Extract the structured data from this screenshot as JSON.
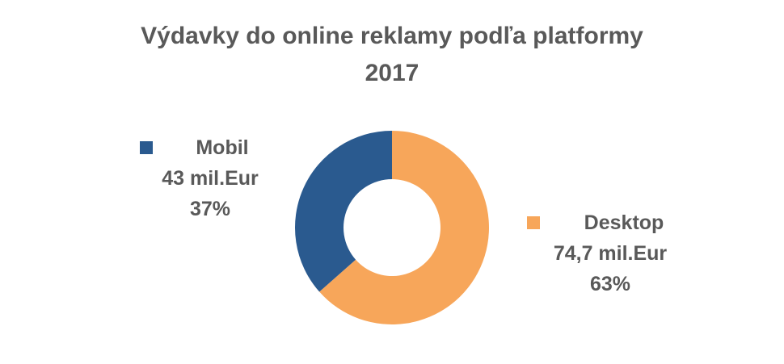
{
  "chart_data": {
    "type": "pie",
    "variant": "donut",
    "title_lines": [
      "Výdavky do online reklamy podľa platformy",
      "2017"
    ],
    "legend": "labels beside slices",
    "slices": [
      {
        "name": "Mobil",
        "value": 43,
        "value_label": "43 mil.Eur",
        "percent": 37,
        "percent_label": "37%",
        "color": "#2A5A8F"
      },
      {
        "name": "Desktop",
        "value": 74.7,
        "value_label": "74,7 mil.Eur",
        "percent": 63,
        "percent_label": "63%",
        "color": "#F7A65A"
      }
    ]
  }
}
